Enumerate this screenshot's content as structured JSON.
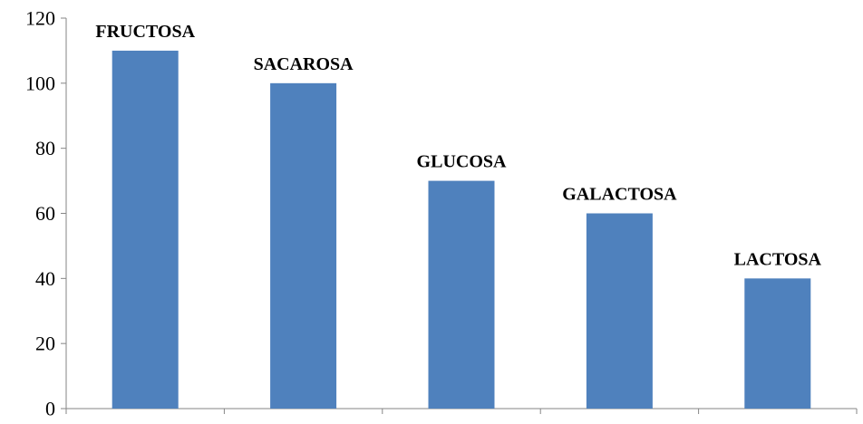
{
  "chart_data": {
    "type": "bar",
    "title": "",
    "xlabel": "",
    "ylabel": "",
    "categories": [
      "FRUCTOSA",
      "SACAROSA",
      "GLUCOSA",
      "GALACTOSA",
      "LACTOSA"
    ],
    "values": [
      110,
      100,
      70,
      60,
      40
    ],
    "ylim": [
      0,
      120
    ],
    "yticks": [
      "0",
      "20",
      "40",
      "60",
      "80",
      "100",
      "120"
    ],
    "grid": false,
    "legend": "none",
    "bar_color": "#4F81BD",
    "axis_color": "#868686"
  }
}
